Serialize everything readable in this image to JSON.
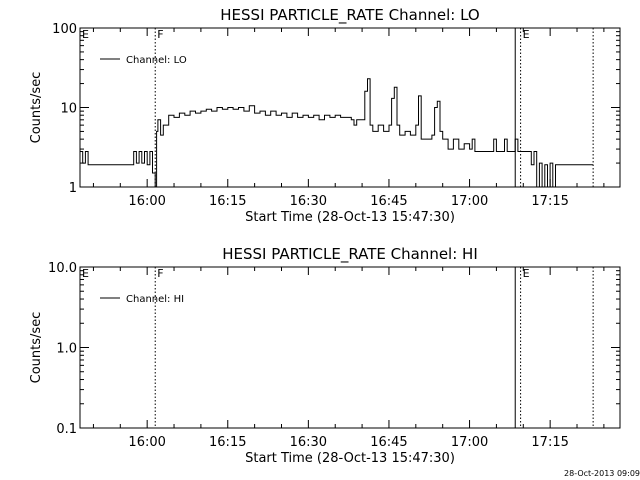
{
  "footer": {
    "timestamp": "28-Oct-2013 09:09"
  },
  "chart_data": [
    {
      "type": "line",
      "title": "HESSI PARTICLE_RATE Channel: LO",
      "xlabel": "Start Time (28-Oct-13 15:47:30)",
      "ylabel": "Counts/sec",
      "y_scale": "log",
      "ylim": [
        1,
        100
      ],
      "y_ticks": [
        1,
        10,
        100
      ],
      "y_tick_labels": [
        "1",
        "10",
        "100"
      ],
      "xlim": [
        "15:47:30",
        "17:28:00"
      ],
      "x_ticks": [
        "16:00",
        "16:15",
        "16:30",
        "16:45",
        "17:00",
        "17:15"
      ],
      "x_tick_labels": [
        "16:00",
        "16:15",
        "16:30",
        "16:45",
        "17:00",
        "17:15"
      ],
      "legend": {
        "label": "Channel: LO",
        "placement": "top-left"
      },
      "markers": [
        {
          "label": "E",
          "time": "15:47:30",
          "style": "none"
        },
        {
          "label": "F",
          "time": "16:01:30",
          "style": "dotted"
        },
        {
          "label": "",
          "time": "17:08:30",
          "style": "solid"
        },
        {
          "label": "E",
          "time": "17:09:30",
          "style": "dotted"
        },
        {
          "label": "",
          "time": "17:23:00",
          "style": "dotted"
        }
      ],
      "series": [
        {
          "name": "Channel: LO",
          "points": [
            [
              "15:47:30",
              2.8
            ],
            [
              "15:48:00",
              2.0
            ],
            [
              "15:48:30",
              2.8
            ],
            [
              "15:49:00",
              1.9
            ],
            [
              "15:57:00",
              1.9
            ],
            [
              "15:57:30",
              2.8
            ],
            [
              "15:58:00",
              2.0
            ],
            [
              "15:58:30",
              2.8
            ],
            [
              "15:59:00",
              2.0
            ],
            [
              "15:59:30",
              2.8
            ],
            [
              "16:00:00",
              1.9
            ],
            [
              "16:00:30",
              2.8
            ],
            [
              "16:01:00",
              1.5
            ],
            [
              "16:01:30",
              1.0
            ],
            [
              "16:01:45",
              5.0
            ],
            [
              "16:02:00",
              7.0
            ],
            [
              "16:02:30",
              4.5
            ],
            [
              "16:03:00",
              6.0
            ],
            [
              "16:04:00",
              8.0
            ],
            [
              "16:05:00",
              7.5
            ],
            [
              "16:06:00",
              8.5
            ],
            [
              "16:07:00",
              8.0
            ],
            [
              "16:08:00",
              9.0
            ],
            [
              "16:09:00",
              8.5
            ],
            [
              "16:10:00",
              9.0
            ],
            [
              "16:11:00",
              9.5
            ],
            [
              "16:12:00",
              9.0
            ],
            [
              "16:13:00",
              10.0
            ],
            [
              "16:14:00",
              9.5
            ],
            [
              "16:15:00",
              10.0
            ],
            [
              "16:16:00",
              9.5
            ],
            [
              "16:17:00",
              10.0
            ],
            [
              "16:18:00",
              9.0
            ],
            [
              "16:19:00",
              10.5
            ],
            [
              "16:20:00",
              8.5
            ],
            [
              "16:21:00",
              9.0
            ],
            [
              "16:22:00",
              8.0
            ],
            [
              "16:23:00",
              9.0
            ],
            [
              "16:24:00",
              8.0
            ],
            [
              "16:25:00",
              8.5
            ],
            [
              "16:26:00",
              7.5
            ],
            [
              "16:27:00",
              8.5
            ],
            [
              "16:28:00",
              7.5
            ],
            [
              "16:29:00",
              8.0
            ],
            [
              "16:30:00",
              7.5
            ],
            [
              "16:31:00",
              8.0
            ],
            [
              "16:32:00",
              7.0
            ],
            [
              "16:33:00",
              8.0
            ],
            [
              "16:34:00",
              7.5
            ],
            [
              "16:35:00",
              8.0
            ],
            [
              "16:36:00",
              7.5
            ],
            [
              "16:37:00",
              7.5
            ],
            [
              "16:38:00",
              7.0
            ],
            [
              "16:38:30",
              6.0
            ],
            [
              "16:39:00",
              7.0
            ],
            [
              "16:40:00",
              7.0
            ],
            [
              "16:40:30",
              16.0
            ],
            [
              "16:41:00",
              23.0
            ],
            [
              "16:41:30",
              6.0
            ],
            [
              "16:42:00",
              5.0
            ],
            [
              "16:43:00",
              6.0
            ],
            [
              "16:44:00",
              5.0
            ],
            [
              "16:45:00",
              6.0
            ],
            [
              "16:45:30",
              13.0
            ],
            [
              "16:46:00",
              18.0
            ],
            [
              "16:46:30",
              6.0
            ],
            [
              "16:47:00",
              4.5
            ],
            [
              "16:48:00",
              5.0
            ],
            [
              "16:49:00",
              4.5
            ],
            [
              "16:50:00",
              6.0
            ],
            [
              "16:50:30",
              14.0
            ],
            [
              "16:51:00",
              4.0
            ],
            [
              "16:52:00",
              4.0
            ],
            [
              "16:53:00",
              4.5
            ],
            [
              "16:53:30",
              10.0
            ],
            [
              "16:54:00",
              12.0
            ],
            [
              "16:54:30",
              5.0
            ],
            [
              "16:55:00",
              4.0
            ],
            [
              "16:56:00",
              3.0
            ],
            [
              "16:57:00",
              4.0
            ],
            [
              "16:58:00",
              3.0
            ],
            [
              "16:59:00",
              3.5
            ],
            [
              "17:00:00",
              3.0
            ],
            [
              "17:00:30",
              4.0
            ],
            [
              "17:01:00",
              2.8
            ],
            [
              "17:04:00",
              2.8
            ],
            [
              "17:04:30",
              4.0
            ],
            [
              "17:05:00",
              2.8
            ],
            [
              "17:06:00",
              2.8
            ],
            [
              "17:06:30",
              4.0
            ],
            [
              "17:07:00",
              2.8
            ],
            [
              "17:08:00",
              2.8
            ],
            [
              "17:08:30",
              4.0
            ],
            [
              "17:09:00",
              2.8
            ],
            [
              "17:11:00",
              2.8
            ],
            [
              "17:11:30",
              1.9
            ],
            [
              "17:12:00",
              2.8
            ],
            [
              "17:12:30",
              1.0
            ],
            [
              "17:13:00",
              2.0
            ],
            [
              "17:13:30",
              1.0
            ],
            [
              "17:14:00",
              1.9
            ],
            [
              "17:14:30",
              1.0
            ],
            [
              "17:15:00",
              2.0
            ],
            [
              "17:15:30",
              1.0
            ],
            [
              "17:16:00",
              1.9
            ],
            [
              "17:23:00",
              1.9
            ]
          ]
        }
      ]
    },
    {
      "type": "line",
      "title": "HESSI PARTICLE_RATE Channel: HI",
      "xlabel": "Start Time (28-Oct-13 15:47:30)",
      "ylabel": "Counts/sec",
      "y_scale": "log",
      "ylim": [
        0.1,
        10
      ],
      "y_ticks": [
        0.1,
        1,
        10
      ],
      "y_tick_labels": [
        "0.1",
        "1.0",
        "10.0"
      ],
      "xlim": [
        "15:47:30",
        "17:28:00"
      ],
      "x_ticks": [
        "16:00",
        "16:15",
        "16:30",
        "16:45",
        "17:00",
        "17:15"
      ],
      "x_tick_labels": [
        "16:00",
        "16:15",
        "16:30",
        "16:45",
        "17:00",
        "17:15"
      ],
      "legend": {
        "label": "Channel: HI",
        "placement": "top-left"
      },
      "markers": [
        {
          "label": "E",
          "time": "15:47:30",
          "style": "none"
        },
        {
          "label": "F",
          "time": "16:01:30",
          "style": "dotted"
        },
        {
          "label": "",
          "time": "17:08:30",
          "style": "solid"
        },
        {
          "label": "E",
          "time": "17:09:30",
          "style": "dotted"
        },
        {
          "label": "",
          "time": "17:23:00",
          "style": "dotted"
        }
      ],
      "series": [
        {
          "name": "Channel: HI",
          "points": []
        }
      ]
    }
  ]
}
